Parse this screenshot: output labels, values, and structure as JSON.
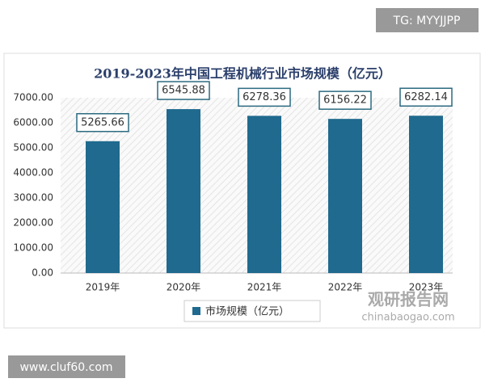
{
  "overlay": {
    "tg": "TG: MYYJJPP",
    "site": "www.cluf60.com"
  },
  "watermark": {
    "name": "观研报告网",
    "url": "chinabaogao.com"
  },
  "chart_data": {
    "type": "bar",
    "title": "2019-2023年中国工程机械行业市场规模（亿元）",
    "categories": [
      "2019年",
      "2020年",
      "2021年",
      "2022年",
      "2023年"
    ],
    "series": [
      {
        "name": "市场规模（亿元）",
        "color": "#1f6a8e",
        "values": [
          5265.66,
          6545.88,
          6278.36,
          6156.22,
          6282.14
        ]
      }
    ],
    "ylim": [
      0,
      7000
    ],
    "yticks": [
      {
        "value": 0,
        "label": "0.00"
      },
      {
        "value": 1000,
        "label": "1000.00"
      },
      {
        "value": 2000,
        "label": "2000.00"
      },
      {
        "value": 3000,
        "label": "3000.00"
      },
      {
        "value": 4000,
        "label": "4000.00"
      },
      {
        "value": 5000,
        "label": "5000.00"
      },
      {
        "value": 6000,
        "label": "6000.00"
      },
      {
        "value": 7000,
        "label": "7000.00"
      }
    ],
    "grid": false,
    "legend": "bottom"
  }
}
